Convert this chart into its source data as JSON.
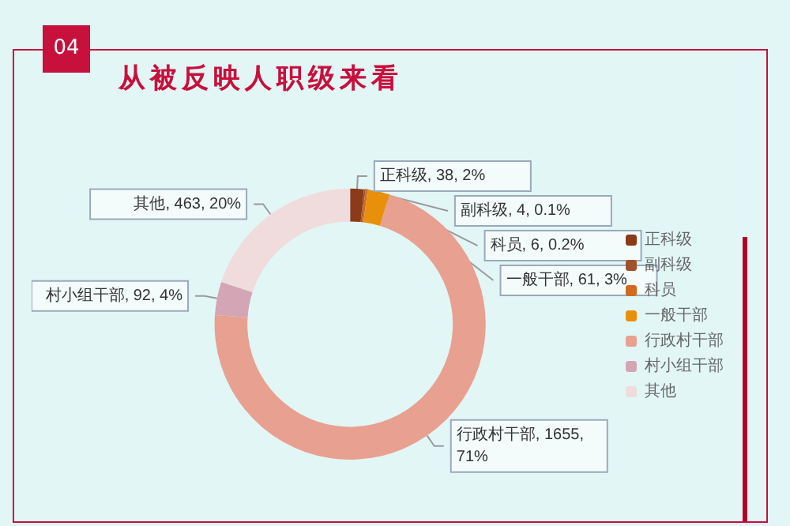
{
  "chart_data": {
    "type": "donut",
    "title": "从被反映人职级来看",
    "annotations": [
      "04"
    ],
    "categories": [
      "正科级",
      "副科级",
      "科员",
      "一般干部",
      "行政村干部",
      "村小组干部",
      "其他"
    ],
    "values": [
      38,
      4,
      6,
      61,
      1655,
      92,
      463
    ],
    "value_labels": [
      "正科级, 38, 2%",
      "副科级, 4, 0.1%",
      "科员, 6, 0.2%",
      "一般干部, 61, 3%",
      "行政村干部, 1655, 71%",
      "村小组干部, 92, 4%",
      "其他, 463, 20%"
    ],
    "colors": [
      "#8b3a1a",
      "#a0522d",
      "#d2691e",
      "#e8900c",
      "#e8a090",
      "#d4a5b5",
      "#f0dcdc"
    ],
    "legend": "right"
  }
}
